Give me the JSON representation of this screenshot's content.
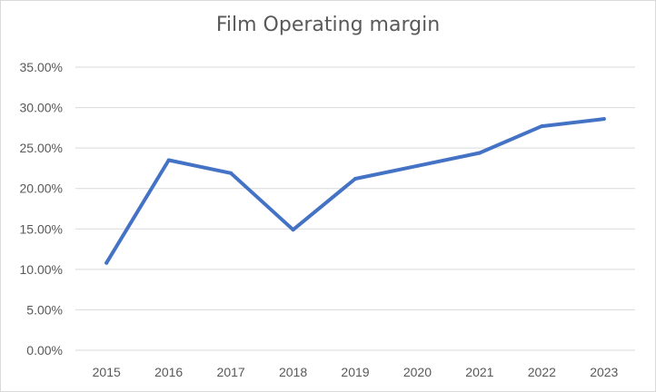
{
  "chart_data": {
    "type": "line",
    "title": "Film Operating margin",
    "xlabel": "",
    "ylabel": "",
    "categories": [
      "2015",
      "2016",
      "2017",
      "2018",
      "2019",
      "2020",
      "2021",
      "2022",
      "2023"
    ],
    "series": [
      {
        "values": [
          0.108,
          0.235,
          0.219,
          0.149,
          0.212,
          0.228,
          0.244,
          0.277,
          0.286
        ]
      }
    ],
    "ylim": [
      0,
      0.35
    ],
    "yticks": [
      0,
      0.05,
      0.1,
      0.15,
      0.2,
      0.25,
      0.3,
      0.35
    ],
    "ytick_labels": [
      "0.00%",
      "5.00%",
      "10.00%",
      "15.00%",
      "20.00%",
      "25.00%",
      "30.00%",
      "35.00%"
    ],
    "grid": true,
    "legend": "none",
    "line_color": "#4472c4",
    "grid_color": "#d9d9d9"
  }
}
